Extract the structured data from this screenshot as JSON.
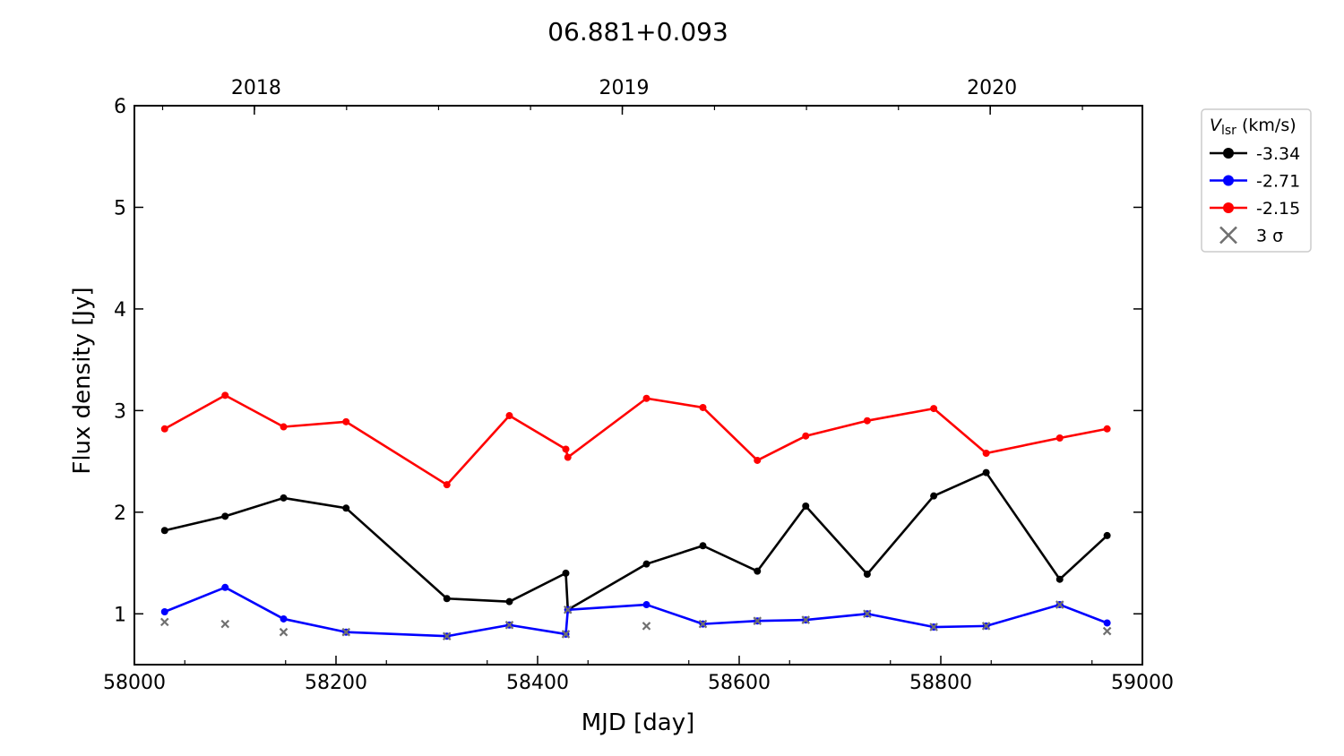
{
  "chart_data": {
    "type": "line",
    "title": "06.881+0.093",
    "xlabel": "MJD [day]",
    "ylabel": "Flux density [Jy]",
    "xlim": [
      58000,
      59000
    ],
    "ylim": [
      0.5,
      6
    ],
    "x_ticks": [
      58000,
      58200,
      58400,
      58600,
      58800,
      59000
    ],
    "y_ticks": [
      1,
      2,
      3,
      4,
      5,
      6
    ],
    "top_axis": {
      "labels": [
        "2018",
        "2019",
        "2020"
      ],
      "mjd": [
        58119,
        58484,
        58849
      ]
    },
    "legend": {
      "title_main": "V",
      "title_sub": "lsr",
      "title_unit": " (km/s)",
      "placement": "outside right, top"
    },
    "series": [
      {
        "name": "-3.34",
        "color": "#000000",
        "x": [
          58030,
          58090,
          58148,
          58210,
          58310,
          58372,
          58428,
          58430,
          58508,
          58564,
          58618,
          58666,
          58727,
          58793,
          58845,
          58918,
          58965
        ],
        "y": [
          1.82,
          1.96,
          2.14,
          2.04,
          1.15,
          1.12,
          1.4,
          1.04,
          1.49,
          1.67,
          1.42,
          2.06,
          1.39,
          2.16,
          2.39,
          1.34,
          1.77
        ]
      },
      {
        "name": "-2.71",
        "color": "#0000ff",
        "x": [
          58030,
          58090,
          58148,
          58210,
          58310,
          58372,
          58428,
          58430,
          58508,
          58564,
          58618,
          58666,
          58727,
          58793,
          58845,
          58918,
          58965
        ],
        "y": [
          1.02,
          1.26,
          0.95,
          0.82,
          0.78,
          0.89,
          0.8,
          1.04,
          1.09,
          0.9,
          0.93,
          0.94,
          1.0,
          0.87,
          0.88,
          1.09,
          0.91
        ]
      },
      {
        "name": "-2.15",
        "color": "#ff0000",
        "x": [
          58030,
          58090,
          58148,
          58210,
          58310,
          58372,
          58428,
          58430,
          58508,
          58564,
          58618,
          58666,
          58727,
          58793,
          58845,
          58918,
          58965
        ],
        "y": [
          2.82,
          3.15,
          2.84,
          2.89,
          2.27,
          2.95,
          2.62,
          2.54,
          3.12,
          3.03,
          2.51,
          2.75,
          2.9,
          3.02,
          2.58,
          2.73,
          2.82
        ]
      }
    ],
    "sigma3": {
      "name": "3 σ",
      "color": "#707070",
      "x": [
        58030,
        58090,
        58148,
        58210,
        58310,
        58372,
        58428,
        58430,
        58508,
        58564,
        58618,
        58666,
        58727,
        58793,
        58845,
        58918,
        58965
      ],
      "y": [
        0.92,
        0.9,
        0.82,
        0.82,
        0.78,
        0.89,
        0.8,
        1.04,
        0.88,
        0.9,
        0.93,
        0.94,
        1.0,
        0.87,
        0.88,
        1.09,
        0.83
      ]
    }
  }
}
